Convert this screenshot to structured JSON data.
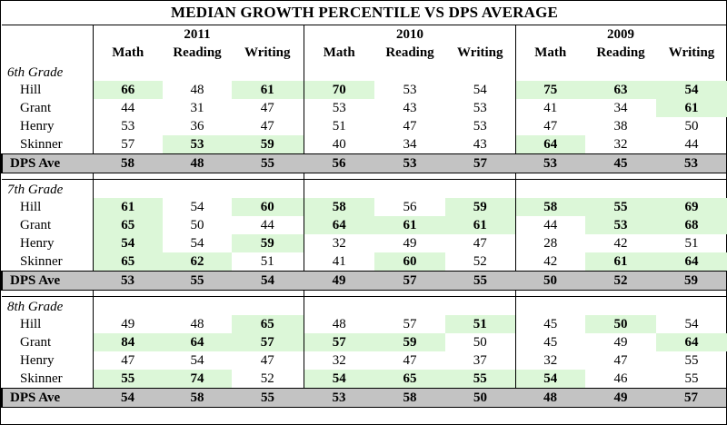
{
  "title": "MEDIAN GROWTH PERCENTILE VS DPS AVERAGE",
  "years": [
    "2011",
    "2010",
    "2009"
  ],
  "subjects": [
    "Math",
    "Reading",
    "Writing"
  ],
  "colors": {
    "highlight": "#dcf7d8",
    "average_row": "#c3c3c3"
  },
  "sections": [
    {
      "grade": "6th Grade",
      "rows": [
        {
          "name": "Hill",
          "values": [
            "66",
            "48",
            "61",
            "70",
            "53",
            "54",
            "75",
            "63",
            "54"
          ],
          "hl": [
            1,
            0,
            1,
            1,
            0,
            0,
            1,
            1,
            1
          ]
        },
        {
          "name": "Grant",
          "values": [
            "44",
            "31",
            "47",
            "53",
            "43",
            "53",
            "41",
            "34",
            "61"
          ],
          "hl": [
            0,
            0,
            0,
            0,
            0,
            0,
            0,
            0,
            1
          ]
        },
        {
          "name": "Henry",
          "values": [
            "53",
            "36",
            "47",
            "51",
            "47",
            "53",
            "47",
            "38",
            "50"
          ],
          "hl": [
            0,
            0,
            0,
            0,
            0,
            0,
            0,
            0,
            0
          ]
        },
        {
          "name": "Skinner",
          "values": [
            "57",
            "53",
            "59",
            "40",
            "34",
            "43",
            "64",
            "32",
            "44"
          ],
          "hl": [
            0,
            1,
            1,
            0,
            0,
            0,
            1,
            0,
            0
          ]
        }
      ],
      "average": {
        "name": "DPS Ave",
        "values": [
          "58",
          "48",
          "55",
          "56",
          "53",
          "57",
          "53",
          "45",
          "53"
        ]
      }
    },
    {
      "grade": "7th Grade",
      "rows": [
        {
          "name": "Hill",
          "values": [
            "61",
            "54",
            "60",
            "58",
            "56",
            "59",
            "58",
            "55",
            "69"
          ],
          "hl": [
            1,
            0,
            1,
            1,
            0,
            1,
            1,
            1,
            1
          ]
        },
        {
          "name": "Grant",
          "values": [
            "65",
            "50",
            "44",
            "64",
            "61",
            "61",
            "44",
            "53",
            "68"
          ],
          "hl": [
            1,
            0,
            0,
            1,
            1,
            1,
            0,
            1,
            1
          ]
        },
        {
          "name": "Henry",
          "values": [
            "54",
            "54",
            "59",
            "32",
            "49",
            "47",
            "28",
            "42",
            "51"
          ],
          "hl": [
            1,
            0,
            1,
            0,
            0,
            0,
            0,
            0,
            0
          ]
        },
        {
          "name": "Skinner",
          "values": [
            "65",
            "62",
            "51",
            "41",
            "60",
            "52",
            "42",
            "61",
            "64"
          ],
          "hl": [
            1,
            1,
            0,
            0,
            1,
            0,
            0,
            1,
            1
          ]
        }
      ],
      "average": {
        "name": "DPS Ave",
        "values": [
          "53",
          "55",
          "54",
          "49",
          "57",
          "55",
          "50",
          "52",
          "59"
        ]
      }
    },
    {
      "grade": "8th Grade",
      "rows": [
        {
          "name": "Hill",
          "values": [
            "49",
            "48",
            "65",
            "48",
            "57",
            "51",
            "45",
            "50",
            "54"
          ],
          "hl": [
            0,
            0,
            1,
            0,
            0,
            1,
            0,
            1,
            0
          ]
        },
        {
          "name": "Grant",
          "values": [
            "84",
            "64",
            "57",
            "57",
            "59",
            "50",
            "45",
            "49",
            "64"
          ],
          "hl": [
            1,
            1,
            1,
            1,
            1,
            0,
            0,
            0,
            1
          ]
        },
        {
          "name": "Henry",
          "values": [
            "47",
            "54",
            "47",
            "32",
            "47",
            "37",
            "32",
            "47",
            "55"
          ],
          "hl": [
            0,
            0,
            0,
            0,
            0,
            0,
            0,
            0,
            0
          ]
        },
        {
          "name": "Skinner",
          "values": [
            "55",
            "74",
            "52",
            "54",
            "65",
            "55",
            "54",
            "46",
            "55"
          ],
          "hl": [
            1,
            1,
            0,
            1,
            1,
            1,
            1,
            0,
            0
          ]
        }
      ],
      "average": {
        "name": "DPS Ave",
        "values": [
          "54",
          "58",
          "55",
          "53",
          "58",
          "50",
          "48",
          "49",
          "57"
        ]
      }
    }
  ]
}
